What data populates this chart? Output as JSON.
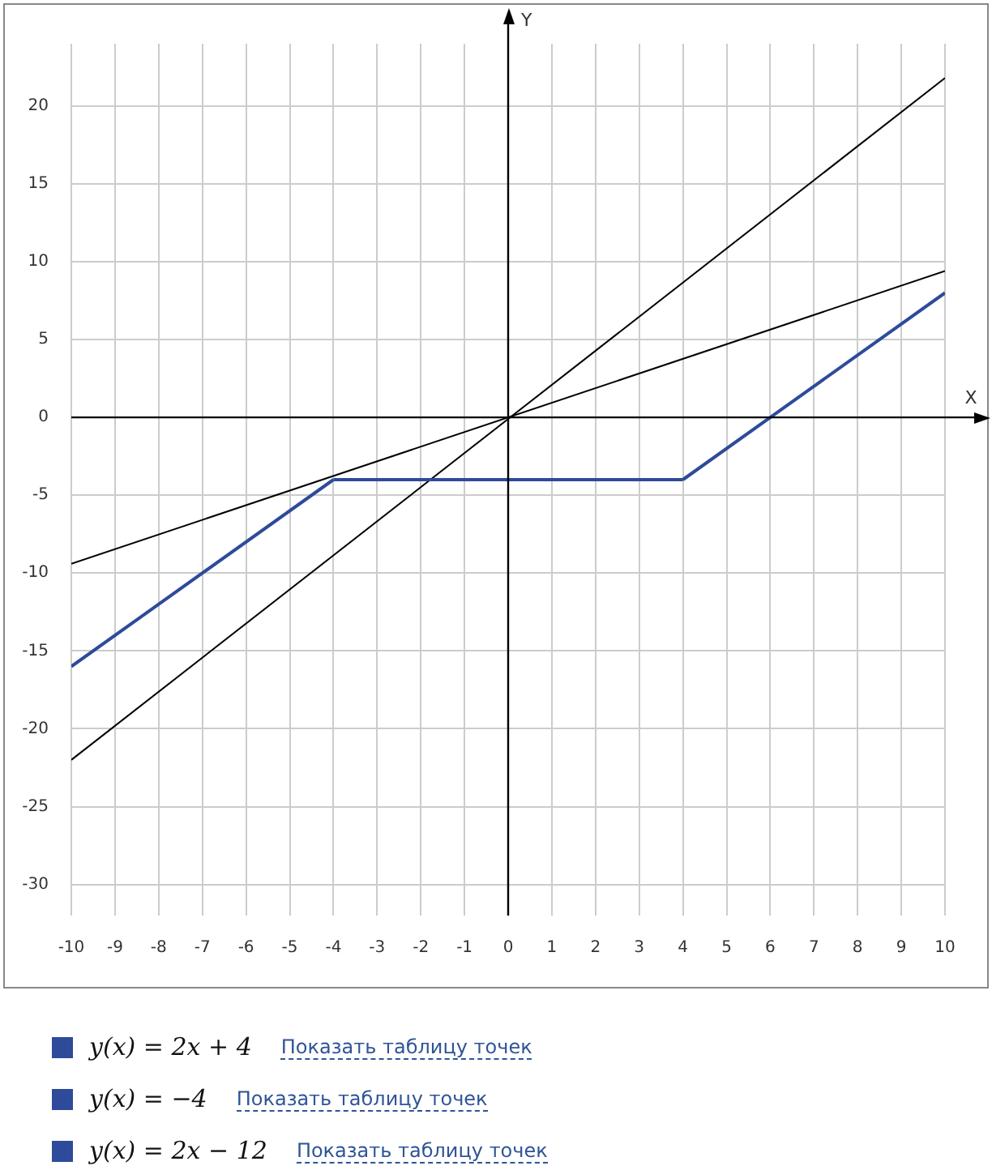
{
  "chart_data": {
    "type": "line",
    "xlabel": "X",
    "ylabel": "Y",
    "xlim": [
      -10,
      10
    ],
    "xticks": [
      -10,
      -9,
      -8,
      -7,
      -6,
      -5,
      -4,
      -3,
      -2,
      -1,
      0,
      1,
      2,
      3,
      4,
      5,
      6,
      7,
      8,
      9,
      10
    ],
    "ylim": [
      -32,
      24
    ],
    "yticks": [
      -30,
      -25,
      -20,
      -15,
      -10,
      -5,
      0,
      5,
      10,
      15,
      20
    ],
    "grid": true,
    "legend": "bottom",
    "marker": "none",
    "line_style": "solid",
    "series": [
      {
        "name": "y(x) = 2x + 4",
        "color": "#2e4a9a",
        "x": [
          -10,
          -4
        ],
        "values": [
          -16,
          -4
        ]
      },
      {
        "name": "y(x) = −4",
        "color": "#2e4a9a",
        "x": [
          -4,
          4
        ],
        "values": [
          -4,
          -4
        ]
      },
      {
        "name": "y(x) = 2x − 12",
        "color": "#2e4a9a",
        "x": [
          4,
          10
        ],
        "values": [
          -4,
          8
        ]
      },
      {
        "color": "#000000",
        "x": [
          -10,
          10
        ],
        "values": [
          -22,
          21.8
        ]
      },
      {
        "color": "#000000",
        "x": [
          -10,
          10
        ],
        "values": [
          -9.4,
          9.4
        ]
      }
    ],
    "annotations": [
      "Показать таблицу точек",
      "Показать таблицу точек",
      "Показать таблицу точек"
    ]
  }
}
